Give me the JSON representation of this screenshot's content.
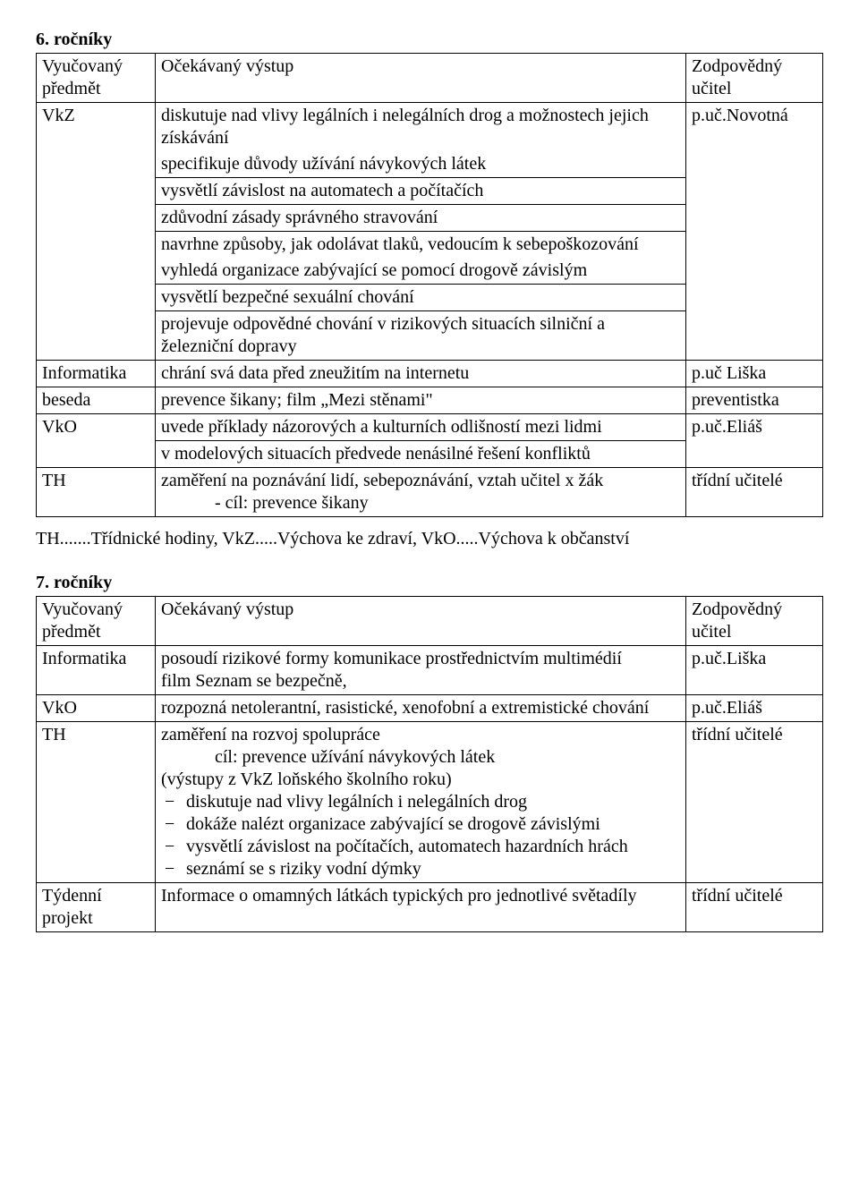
{
  "section6": {
    "title": "6. ročníky",
    "header": {
      "subject": "Vyučovaný předmět",
      "outcome": "Očekávaný výstup",
      "teacher": "Zodpovědný učitel"
    },
    "vkz": {
      "subject": "VkZ",
      "r1": "diskutuje nad vlivy legálních i nelegálních drog a možnostech  jejich získávání",
      "r2": "specifikuje důvody užívání návykových látek",
      "r3": "vysvětlí závislost na automatech a počítačích",
      "r4": "zdůvodní zásady správného stravování",
      "r5": "navrhne způsoby, jak odolávat tlaků, vedoucím k sebepoškozování",
      "r6": "vyhledá organizace zabývající se pomocí drogově závislým",
      "r7": "vysvětlí bezpečné sexuální chování",
      "r8": "projevuje odpovědné chování v rizikových situacích silniční a železniční dopravy",
      "teacher": "p.uč.Novotná"
    },
    "informatika": {
      "subject": "Informatika",
      "outcome": "chrání svá data před zneužitím na internetu",
      "teacher": "p.uč Liška"
    },
    "beseda": {
      "subject": "beseda",
      "outcome": "prevence šikany; film „Mezi stěnami\"",
      "teacher": "preventistka"
    },
    "vko": {
      "subject": "VkO",
      "r1": "uvede příklady názorových a kulturních odlišností mezi lidmi",
      "r2": "v modelových situacích předvede nenásilné řešení konfliktů",
      "teacher": "p.uč.Eliáš"
    },
    "th": {
      "subject": "TH",
      "line1": "zaměření na poznávání lidí, sebepoznávání, vztah učitel x žák",
      "line2": "- cíl: prevence šikany",
      "teacher": "třídní učitelé"
    },
    "footnote": "TH.......Třídnické hodiny, VkZ.....Výchova ke zdraví, VkO.....Výchova k občanství"
  },
  "section7": {
    "title": "7. ročníky",
    "header": {
      "subject": "Vyučovaný předmět",
      "outcome": "Očekávaný výstup",
      "teacher": "Zodpovědný učitel"
    },
    "informatika": {
      "subject": "Informatika",
      "line1": "posoudí rizikové formy komunikace prostřednictvím multimédií",
      "line2": "film Seznam se bezpečně,",
      "teacher": "p.uč.Liška"
    },
    "vko": {
      "subject": "VkO",
      "outcome": "rozpozná netolerantní, rasistické, xenofobní a extremistické chování",
      "teacher": "p.uč.Eliáš"
    },
    "th": {
      "subject": "TH",
      "l1": "zaměření na rozvoj spolupráce",
      "l2": "cíl: prevence užívání návykových látek",
      "l3": "(výstupy z VkZ loňského školního roku)",
      "b1": "diskutuje nad vlivy legálních i nelegálních drog",
      "b2": "dokáže nalézt organizace zabývající se drogově závislými",
      "b3": "vysvětlí závislost na počítačích, automatech hazardních hrách",
      "b4": "seznámí se s riziky vodní dýmky",
      "teacher": "třídní učitelé"
    },
    "projekt": {
      "subject": "Týdenní projekt",
      "outcome": "Informace o omamných látkách typických pro jednotlivé světadíly",
      "teacher": "třídní učitelé"
    }
  }
}
